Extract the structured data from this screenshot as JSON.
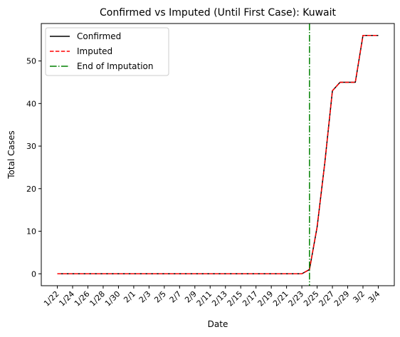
{
  "chart_data": {
    "type": "line",
    "title": "Confirmed vs Imputed (Until First Case): Kuwait",
    "xlabel": "Date",
    "ylabel": "Total Cases",
    "x": [
      "1/22",
      "1/23",
      "1/24",
      "1/25",
      "1/26",
      "1/27",
      "1/28",
      "1/29",
      "1/30",
      "1/31",
      "2/1",
      "2/2",
      "2/3",
      "2/4",
      "2/5",
      "2/6",
      "2/7",
      "2/8",
      "2/9",
      "2/10",
      "2/11",
      "2/12",
      "2/13",
      "2/14",
      "2/15",
      "2/16",
      "2/17",
      "2/18",
      "2/19",
      "2/20",
      "2/21",
      "2/22",
      "2/23",
      "2/24",
      "2/25",
      "2/26",
      "2/27",
      "2/28",
      "2/29",
      "3/1",
      "3/2",
      "3/3",
      "3/4"
    ],
    "xticks": [
      "1/22",
      "1/24",
      "1/26",
      "1/28",
      "1/30",
      "2/1",
      "2/3",
      "2/5",
      "2/7",
      "2/9",
      "2/11",
      "2/13",
      "2/15",
      "2/17",
      "2/19",
      "2/21",
      "2/23",
      "2/25",
      "2/27",
      "2/29",
      "3/2",
      "3/4"
    ],
    "yticks": [
      0,
      10,
      20,
      30,
      40,
      50
    ],
    "ylim": [
      -2.8,
      58.8
    ],
    "series": [
      {
        "name": "Confirmed",
        "color": "#000000",
        "style": "solid",
        "values": [
          0,
          0,
          0,
          0,
          0,
          0,
          0,
          0,
          0,
          0,
          0,
          0,
          0,
          0,
          0,
          0,
          0,
          0,
          0,
          0,
          0,
          0,
          0,
          0,
          0,
          0,
          0,
          0,
          0,
          0,
          0,
          0,
          0,
          1,
          11,
          26,
          43,
          45,
          45,
          45,
          56,
          56,
          56
        ]
      },
      {
        "name": "Imputed",
        "color": "#ff0000",
        "style": "dashed",
        "values": [
          0,
          0,
          0,
          0,
          0,
          0,
          0,
          0,
          0,
          0,
          0,
          0,
          0,
          0,
          0,
          0,
          0,
          0,
          0,
          0,
          0,
          0,
          0,
          0,
          0,
          0,
          0,
          0,
          0,
          0,
          0,
          0,
          0,
          1,
          11,
          26,
          43,
          45,
          45,
          45,
          56,
          56,
          56
        ]
      }
    ],
    "vline": {
      "name": "End of Imputation",
      "x": "2/24",
      "color": "#008000",
      "style": "dashdot"
    },
    "legend": {
      "position": "top-left"
    },
    "grid": false
  }
}
